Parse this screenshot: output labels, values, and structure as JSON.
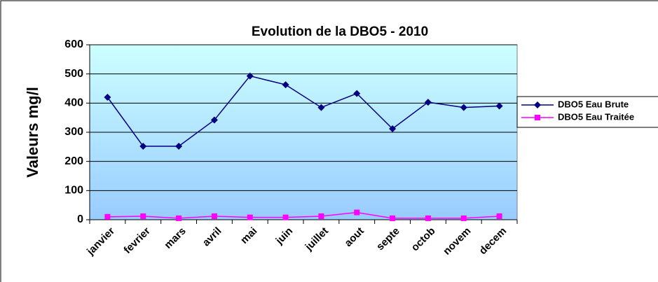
{
  "chart_data": {
    "type": "line",
    "title": "Evolution de la DBO5 - 2010",
    "y_label": "Valeurs mg/l",
    "categories": [
      "janvier",
      "fevrier",
      "mars",
      "avril",
      "mai",
      "juin",
      "juillet",
      "aout",
      "septe",
      "octob",
      "novem",
      "decem"
    ],
    "series": [
      {
        "name": "DBO5 Eau Brute",
        "color": "#000080",
        "marker": "diamond",
        "values": [
          420,
          252,
          252,
          342,
          493,
          463,
          385,
          433,
          312,
          403,
          385,
          390
        ]
      },
      {
        "name": "DBO5 Eau Traitée",
        "color": "#ff00ff",
        "marker": "square",
        "values": [
          10,
          12,
          5,
          12,
          8,
          8,
          12,
          25,
          5,
          5,
          5,
          12
        ]
      }
    ],
    "ylim": [
      0,
      600
    ],
    "yticks": [
      0,
      100,
      200,
      300,
      400,
      500,
      600
    ],
    "grid": true,
    "legend": "right"
  }
}
